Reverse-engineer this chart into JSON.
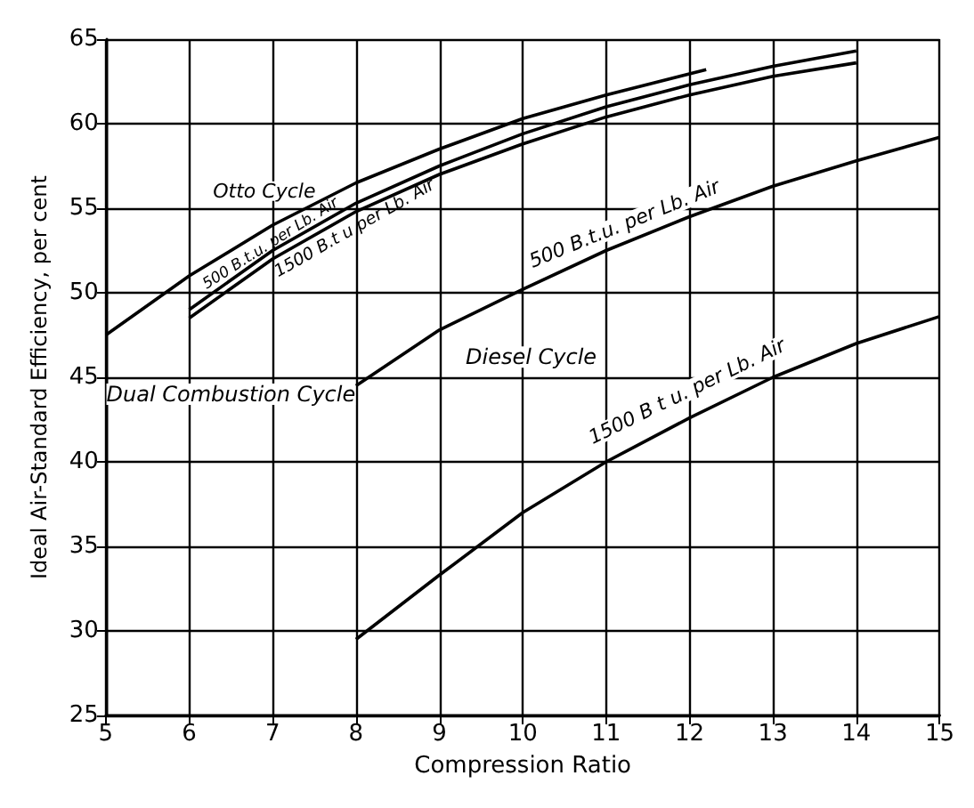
{
  "chart_data": {
    "type": "line",
    "xlabel": "Compression Ratio",
    "ylabel": "Ideal Air-Standard Efficiency, per cent",
    "xlim": [
      5,
      15
    ],
    "xticks": [
      5,
      6,
      7,
      8,
      9,
      10,
      11,
      12,
      13,
      14,
      15
    ],
    "ylim": [
      25,
      65
    ],
    "yticks": [
      25,
      30,
      35,
      40,
      45,
      50,
      55,
      60,
      65
    ],
    "grid": true,
    "marker": "none",
    "line_style": "solid",
    "series": [
      {
        "name": "Otto Cycle",
        "color": "#000000",
        "x": [
          5,
          6,
          7,
          8,
          9,
          10,
          11,
          12.2
        ],
        "values": [
          47.5,
          51,
          54,
          56.5,
          58.5,
          60.3,
          61.7,
          63.2
        ]
      },
      {
        "name": "500 B.t.u. per Lb. Air",
        "color": "#000000",
        "x": [
          6,
          7,
          8,
          9,
          10,
          11,
          12,
          13,
          14
        ],
        "values": [
          49,
          52.5,
          55.3,
          57.5,
          59.4,
          61,
          62.3,
          63.4,
          64.3
        ]
      },
      {
        "name": "1500 B.t u per Lb. Air",
        "color": "#000000",
        "x": [
          6,
          7,
          8,
          9,
          10,
          11,
          12,
          13,
          14
        ],
        "values": [
          48.5,
          52,
          54.8,
          57,
          58.8,
          60.4,
          61.7,
          62.8,
          63.6
        ]
      },
      {
        "name": "500 B.t.u. per Lb. Air",
        "color": "#000000",
        "x": [
          8,
          9,
          10,
          11,
          12,
          13,
          14,
          15
        ],
        "values": [
          44.5,
          47.8,
          50.2,
          52.5,
          54.5,
          56.3,
          57.8,
          59.2
        ]
      },
      {
        "name": "1500 B t u. per Lb. Air",
        "color": "#000000",
        "x": [
          8,
          9,
          10,
          11,
          12,
          13,
          14,
          15
        ],
        "values": [
          29.5,
          33.3,
          37,
          40,
          42.6,
          45,
          47,
          48.6
        ]
      }
    ],
    "annotations": [
      "Dual Combustion Cycle",
      "Diesel Cycle"
    ]
  }
}
